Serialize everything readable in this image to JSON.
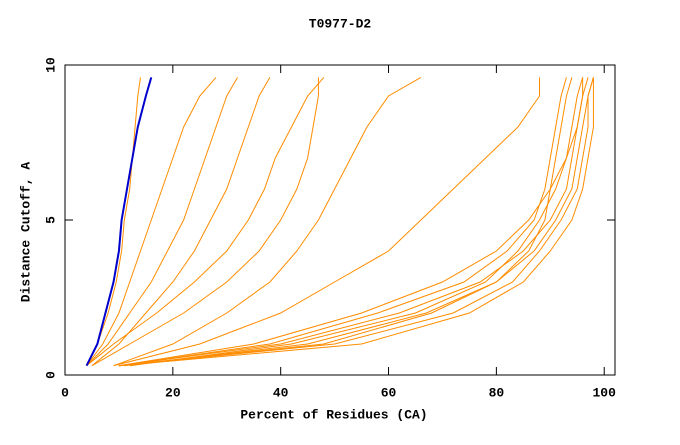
{
  "chart_data": {
    "type": "line",
    "title": "T0977-D2",
    "x_label": "Percent of Residues (CA)",
    "y_label": "Distance Cutoff, A",
    "xlim": [
      0,
      102
    ],
    "ylim": [
      0,
      10
    ],
    "xticks": [
      0,
      20,
      40,
      60,
      80,
      100
    ],
    "yticks": [
      0,
      5,
      10
    ],
    "series": [
      {
        "color": "#ff8c00",
        "x": [
          4,
          6,
          8,
          9.5,
          10.5,
          11,
          12,
          12.5,
          13,
          13.5,
          14
        ],
        "values": [
          0.3,
          1,
          2,
          3,
          4,
          5,
          6,
          7,
          8,
          9,
          9.6
        ]
      },
      {
        "color": "#ff8c00",
        "x": [
          4,
          7,
          10,
          12,
          14,
          16,
          18,
          20,
          22,
          25,
          28
        ],
        "values": [
          0.3,
          1,
          2,
          3,
          4,
          5,
          6,
          7,
          8,
          9,
          9.6
        ]
      },
      {
        "color": "#ff8c00",
        "x": [
          4,
          8,
          12,
          16,
          19,
          22,
          24,
          26,
          28,
          30,
          32
        ],
        "values": [
          0.3,
          1,
          2,
          3,
          4,
          5,
          6,
          7,
          8,
          9,
          9.6
        ]
      },
      {
        "color": "#ff8c00",
        "x": [
          5,
          10,
          15,
          20,
          24,
          27,
          30,
          32,
          34,
          36,
          38
        ],
        "values": [
          0.3,
          1,
          2,
          3,
          4,
          5,
          6,
          7,
          8,
          9,
          9.6
        ]
      },
      {
        "color": "#ff8c00",
        "x": [
          4,
          9,
          17,
          24,
          30,
          34,
          37,
          39,
          42,
          45,
          48
        ],
        "values": [
          0.3,
          1,
          2,
          3,
          4,
          5,
          6,
          7,
          8,
          9,
          9.6
        ]
      },
      {
        "color": "#ff8c00",
        "x": [
          5,
          12,
          22,
          30,
          36,
          40,
          43,
          45,
          46,
          47,
          47
        ],
        "values": [
          0.3,
          1,
          2,
          3,
          4,
          5,
          6,
          7,
          8,
          9,
          9.6
        ]
      },
      {
        "color": "#ff8c00",
        "x": [
          9,
          20,
          30,
          38,
          43,
          47,
          50,
          53,
          56,
          60,
          66
        ],
        "values": [
          0.3,
          1,
          2,
          3,
          4,
          5,
          6,
          7,
          8,
          9,
          9.6
        ]
      },
      {
        "color": "#ff8c00",
        "x": [
          9,
          25,
          40,
          50,
          60,
          66,
          72,
          78,
          84,
          88,
          88
        ],
        "values": [
          0.3,
          1,
          2,
          3,
          4,
          5,
          6,
          7,
          8,
          9,
          9.6
        ]
      },
      {
        "color": "#ff8c00",
        "x": [
          10,
          35,
          55,
          70,
          80,
          86,
          90,
          93,
          94,
          95,
          96
        ],
        "values": [
          0.3,
          1,
          2,
          3,
          4,
          5,
          6,
          7,
          8,
          9,
          9.6
        ]
      },
      {
        "color": "#ff8c00",
        "x": [
          10,
          40,
          62,
          77,
          85,
          90,
          93,
          94,
          95,
          96,
          97
        ],
        "values": [
          0.3,
          1,
          2,
          3,
          4,
          5,
          6,
          7,
          8,
          9,
          9.6
        ]
      },
      {
        "color": "#ff8c00",
        "x": [
          11,
          45,
          67,
          80,
          87,
          91,
          94,
          95,
          96,
          97,
          98
        ],
        "values": [
          0.3,
          1,
          2,
          3,
          4,
          5,
          6,
          7,
          8,
          9,
          9.6
        ]
      },
      {
        "color": "#ff8c00",
        "x": [
          10,
          50,
          72,
          83,
          88,
          92,
          95,
          96,
          97,
          97,
          98
        ],
        "values": [
          0.3,
          1,
          2,
          3,
          4,
          5,
          6,
          7,
          8,
          9,
          9.6
        ]
      },
      {
        "color": "#ff8c00",
        "x": [
          12,
          42,
          65,
          78,
          84,
          88,
          91,
          93,
          95,
          96,
          96
        ],
        "values": [
          0.3,
          1,
          2,
          3,
          4,
          5,
          6,
          7,
          8,
          9,
          9.6
        ]
      },
      {
        "color": "#ff8c00",
        "x": [
          10,
          55,
          75,
          85,
          90,
          94,
          96,
          97,
          98,
          98,
          98
        ],
        "values": [
          0.3,
          1,
          2,
          3,
          4,
          5,
          6,
          7,
          8,
          9,
          9.6
        ]
      },
      {
        "color": "#ff8c00",
        "x": [
          10,
          38,
          58,
          74,
          82,
          87,
          89,
          90,
          91,
          92,
          93
        ],
        "values": [
          0.3,
          1,
          2,
          3,
          4,
          5,
          6,
          7,
          8,
          9,
          9.6
        ]
      },
      {
        "color": "#ff8c00",
        "x": [
          10,
          48,
          68,
          80,
          86,
          89,
          90,
          91,
          92,
          93,
          94
        ],
        "values": [
          0.3,
          1,
          2,
          3,
          4,
          5,
          6,
          7,
          8,
          9,
          9.6
        ]
      },
      {
        "color": "#0000cc",
        "x": [
          4,
          6,
          7.5,
          9,
          10,
          10.5,
          11.5,
          12.5,
          13.5,
          15,
          16
        ],
        "values": [
          0.3,
          1,
          2,
          3,
          4,
          5,
          6,
          7,
          8,
          9,
          9.6
        ]
      }
    ]
  }
}
